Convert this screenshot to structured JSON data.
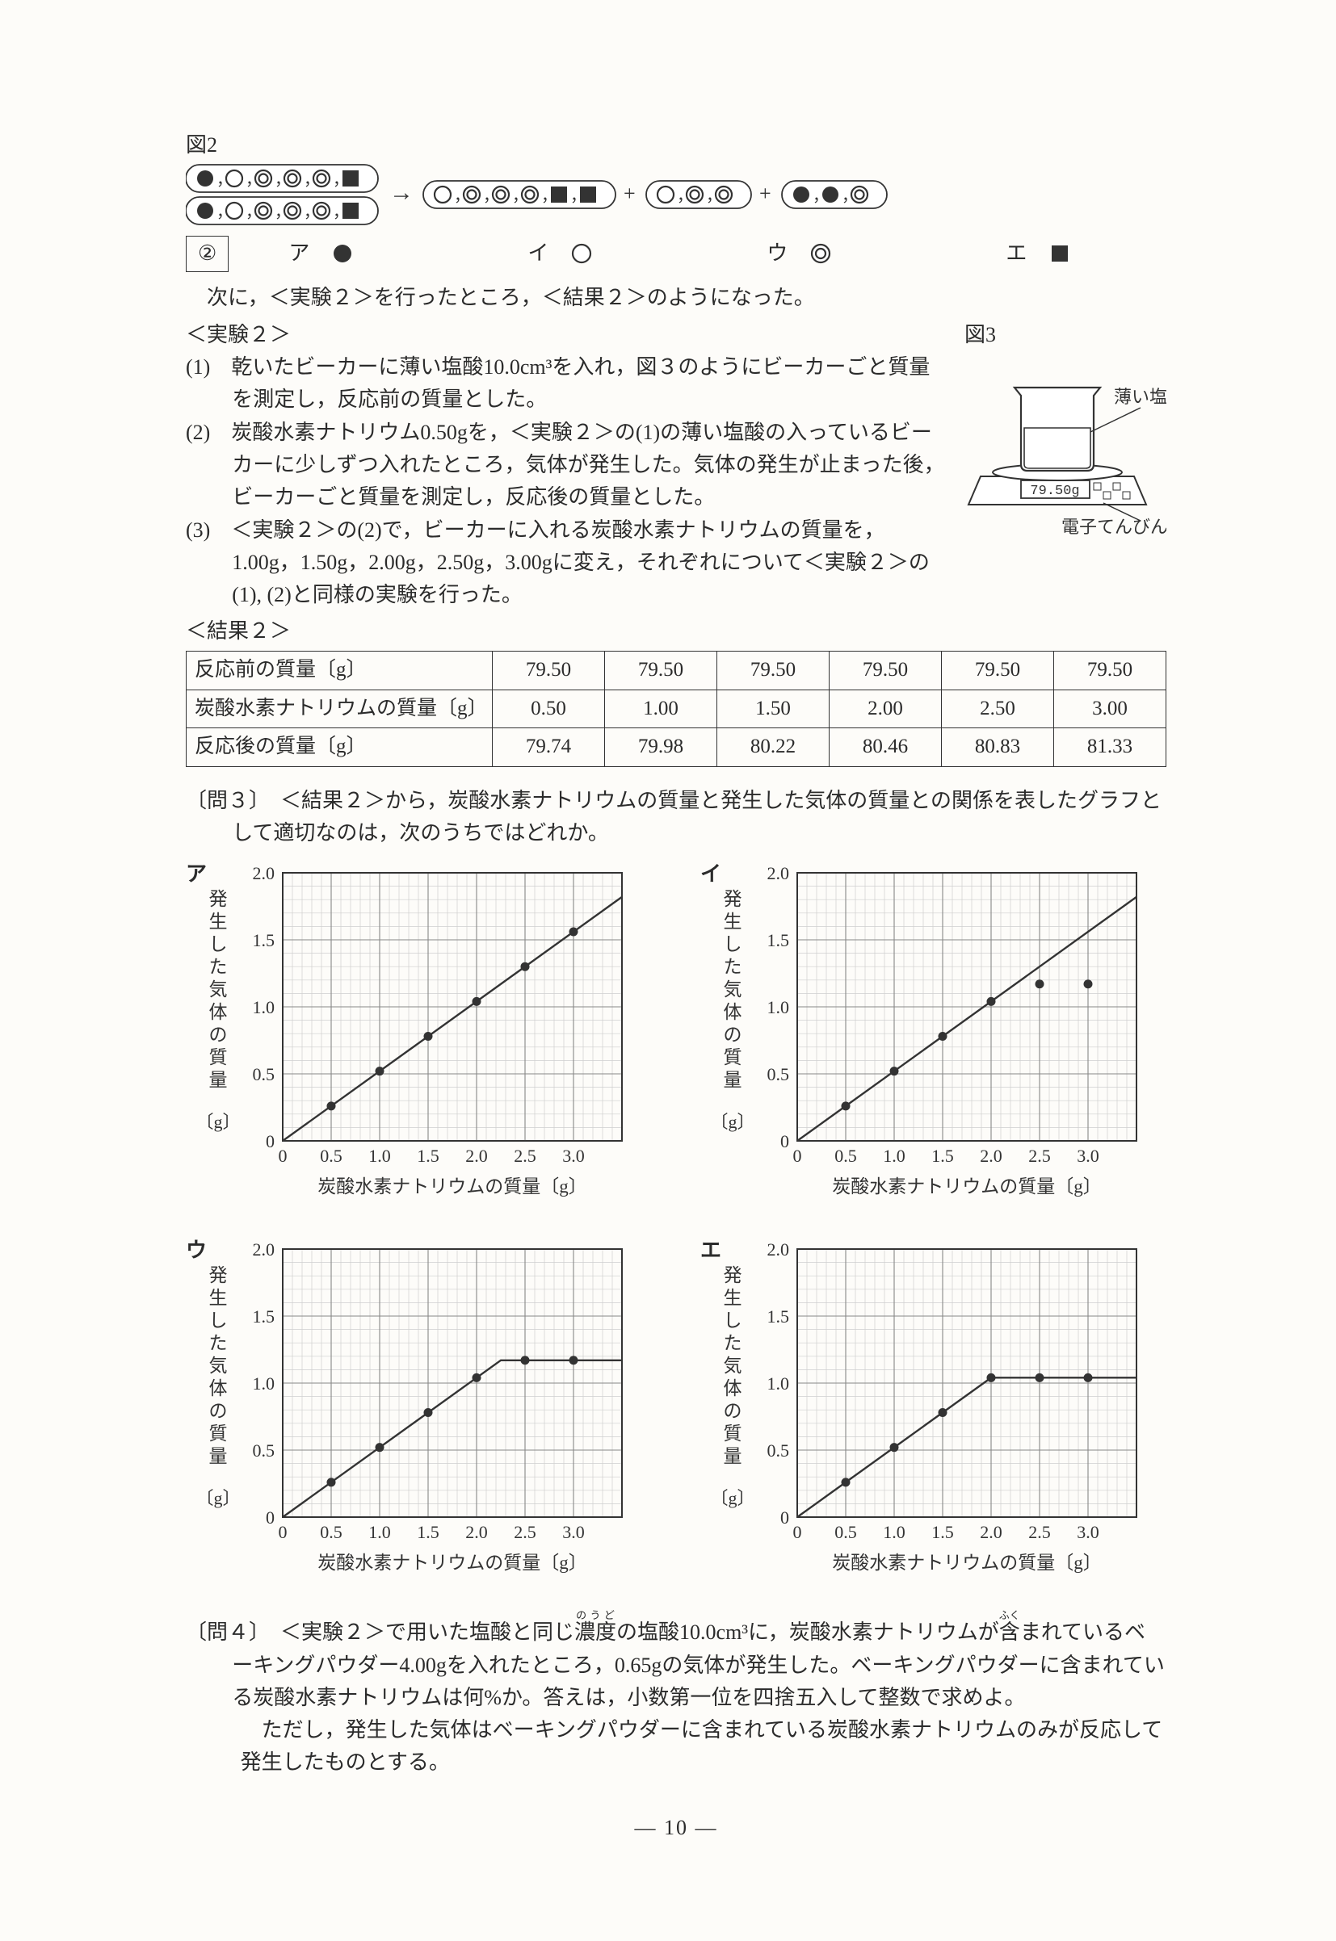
{
  "figure2": {
    "label": "図2",
    "left_row1": [
      "solid",
      "open",
      "double",
      "double",
      "double",
      "square"
    ],
    "left_row2": [
      "solid",
      "open",
      "double",
      "double",
      "double",
      "square"
    ],
    "arrow": "→",
    "group1": [
      "open",
      "double",
      "double",
      "double",
      "square",
      "square"
    ],
    "group2": [
      "open",
      "double",
      "double"
    ],
    "group3": [
      "solid",
      "solid",
      "double"
    ],
    "choice_prefix": "②",
    "choices": {
      "a_label": "ア",
      "a_type": "solid",
      "i_label": "イ",
      "i_type": "open",
      "u_label": "ウ",
      "u_type": "double",
      "e_label": "エ",
      "e_type": "square"
    }
  },
  "intro_text": "　次に，＜実験２＞を行ったところ，＜結果２＞のようになった。",
  "exp2_title": "＜実験２＞",
  "exp2_items": [
    "(1)　乾いたビーカーに薄い塩酸10.0cm³を入れ，図３のようにビーカーごと質量を測定し，反応前の質量とした。",
    "(2)　炭酸水素ナトリウム0.50gを，＜実験２＞の(1)の薄い塩酸の入っているビーカーに少しずつ入れたところ，気体が発生した。気体の発生が止まった後，ビーカーごと質量を測定し，反応後の質量とした。",
    "(3)　＜実験２＞の(2)で，ビーカーに入れる炭酸水素ナトリウムの質量を，1.00g，1.50g，2.00g，2.50g，3.00gに変え，それぞれについて＜実験２＞の(1), (2)と同様の実験を行った。"
  ],
  "fig3": {
    "label": "図3",
    "beaker_label": "薄い塩酸",
    "display": "79.50g",
    "balance_label": "電子てんびん"
  },
  "result2_title": "＜結果２＞",
  "result2": {
    "rows": [
      {
        "label": "反応前の質量〔g〕",
        "vals": [
          "79.50",
          "79.50",
          "79.50",
          "79.50",
          "79.50",
          "79.50"
        ]
      },
      {
        "label": "炭酸水素ナトリウムの質量〔g〕",
        "vals": [
          "0.50",
          "1.00",
          "1.50",
          "2.00",
          "2.50",
          "3.00"
        ]
      },
      {
        "label": "反応後の質量〔g〕",
        "vals": [
          "79.74",
          "79.98",
          "80.22",
          "80.46",
          "80.83",
          "81.33"
        ]
      }
    ]
  },
  "q3_text": "〔問３〕　＜結果２＞から，炭酸水素ナトリウムの質量と発生した気体の質量との関係を表したグラフとして適切なのは，次のうちではどれか。",
  "graphs": {
    "xlabel": "炭酸水素ナトリウムの質量〔g〕",
    "ylabel": "発生した気体の質量",
    "yunit": "〔g〕",
    "xticks": [
      "0",
      "0.5",
      "1.0",
      "1.5",
      "2.0",
      "2.5",
      "3.0"
    ],
    "yticks": [
      "0",
      "0.5",
      "1.0",
      "1.5",
      "2.0"
    ],
    "xlim": [
      0,
      3.5
    ],
    "ylim": [
      0,
      2.0
    ],
    "panels": {
      "a": {
        "tag": "ア",
        "points": [
          [
            0.5,
            0.26
          ],
          [
            1.0,
            0.52
          ],
          [
            1.5,
            0.78
          ],
          [
            2.0,
            1.04
          ],
          [
            2.5,
            1.3
          ],
          [
            3.0,
            1.56
          ]
        ],
        "line": [
          [
            0,
            0
          ],
          [
            3.5,
            1.82
          ]
        ]
      },
      "i": {
        "tag": "イ",
        "points": [
          [
            0.5,
            0.26
          ],
          [
            1.0,
            0.52
          ],
          [
            1.5,
            0.78
          ],
          [
            2.0,
            1.04
          ],
          [
            2.5,
            1.17
          ],
          [
            3.0,
            1.17
          ]
        ],
        "line": [
          [
            0,
            0
          ],
          [
            3.5,
            1.82
          ]
        ]
      },
      "u": {
        "tag": "ウ",
        "points": [
          [
            0.5,
            0.26
          ],
          [
            1.0,
            0.52
          ],
          [
            1.5,
            0.78
          ],
          [
            2.0,
            1.04
          ],
          [
            2.5,
            1.17
          ],
          [
            3.0,
            1.17
          ]
        ],
        "line": [
          [
            0,
            0
          ],
          [
            2.25,
            1.17
          ],
          [
            3.5,
            1.17
          ]
        ]
      },
      "e": {
        "tag": "エ",
        "points": [
          [
            0.5,
            0.26
          ],
          [
            1.0,
            0.52
          ],
          [
            1.5,
            0.78
          ],
          [
            2.0,
            1.04
          ],
          [
            2.5,
            1.04
          ],
          [
            3.0,
            1.04
          ]
        ],
        "line": [
          [
            0,
            0
          ],
          [
            2.0,
            1.04
          ],
          [
            3.5,
            1.04
          ]
        ]
      }
    }
  },
  "q4_text": "〔問４〕　＜実験２＞で用いた塩酸と同じ濃度の塩酸10.0cm³に，炭酸水素ナトリウムが含まれているベーキングパウダー4.00gを入れたところ，0.65gの気体が発生した。ベーキングパウダーに含まれている炭酸水素ナトリウムは何%か。答えは，小数第一位を四捨五入して整数で求めよ。",
  "q4_note": "　ただし，発生した気体はベーキングパウダーに含まれている炭酸水素ナトリウムのみが反応して発生したものとする。",
  "q4_ruby": {
    "noudo": "のうど",
    "fuku": "ふく"
  },
  "page_num": "— 10 —",
  "colors": {
    "ink": "#2b2b2b",
    "bg": "#fdfcf9",
    "grid_major": "#888",
    "grid_minor": "#cfcfcf"
  }
}
